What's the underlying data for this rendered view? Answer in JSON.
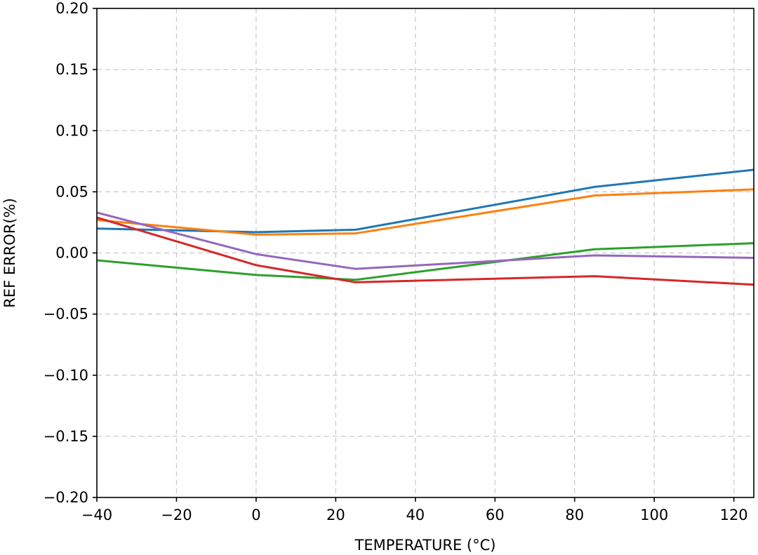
{
  "chart_data": {
    "type": "line",
    "title": "",
    "xlabel": "TEMPERATURE (°C)",
    "ylabel": "REF ERROR(%)",
    "xlim": [
      -40,
      125
    ],
    "ylim": [
      -0.2,
      0.2
    ],
    "grid": true,
    "x_ticks": [
      -40,
      -20,
      0,
      20,
      40,
      60,
      80,
      100,
      120
    ],
    "x_tick_labels": [
      "−40",
      "−20",
      "0",
      "20",
      "40",
      "60",
      "80",
      "100",
      "120"
    ],
    "y_ticks": [
      -0.2,
      -0.15,
      -0.1,
      -0.05,
      0.0,
      0.05,
      0.1,
      0.15,
      0.2
    ],
    "y_tick_labels": [
      "−0.20",
      "−0.15",
      "−0.10",
      "−0.05",
      "0.00",
      "0.05",
      "0.10",
      "0.15",
      "0.20"
    ],
    "x": [
      -40,
      0,
      25,
      85,
      125
    ],
    "series": [
      {
        "color": "#1f77b4",
        "values": [
          0.02,
          0.017,
          0.019,
          0.054,
          0.068
        ]
      },
      {
        "color": "#ff7f0e",
        "values": [
          0.027,
          0.015,
          0.016,
          0.047,
          0.052
        ]
      },
      {
        "color": "#2ca02c",
        "values": [
          -0.006,
          -0.018,
          -0.022,
          0.003,
          0.008
        ]
      },
      {
        "color": "#d62728",
        "values": [
          0.029,
          -0.01,
          -0.024,
          -0.019,
          -0.026
        ]
      },
      {
        "color": "#9467bd",
        "values": [
          0.033,
          -0.001,
          -0.013,
          -0.002,
          -0.004
        ]
      }
    ]
  }
}
